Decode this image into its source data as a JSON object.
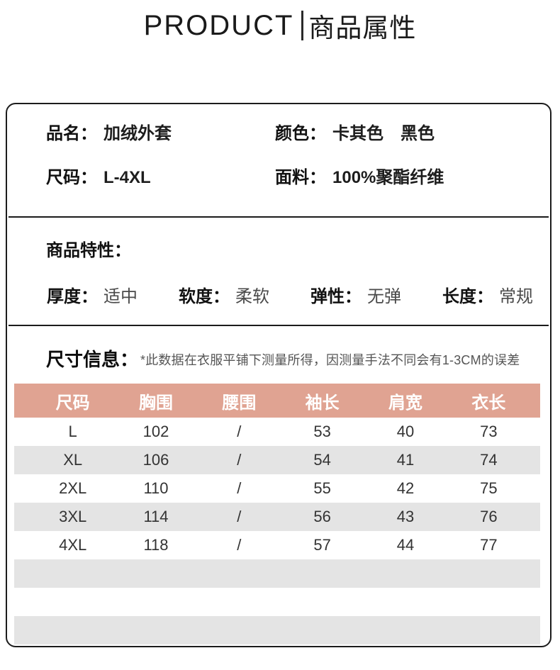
{
  "header": {
    "title_en": "PRODUCT",
    "title_zh": "商品属性"
  },
  "product_info": {
    "fields": [
      {
        "label": "品名：",
        "value": "加绒外套"
      },
      {
        "label": "颜色：",
        "value": "卡其色　黑色"
      },
      {
        "label": "尺码：",
        "value": "L-4XL"
      },
      {
        "label": "面料：",
        "value": "100%聚酯纤维"
      }
    ]
  },
  "features": {
    "heading": "商品特性：",
    "items": [
      {
        "label": "厚度：",
        "value": "适中"
      },
      {
        "label": "软度：",
        "value": "柔软"
      },
      {
        "label": "弹性：",
        "value": "无弹"
      },
      {
        "label": "长度：",
        "value": "常规"
      }
    ]
  },
  "size_info": {
    "heading": "尺寸信息：",
    "note": "*此数据在衣服平铺下测量所得，因测量手法不同会有1-3CM的误差"
  },
  "size_table": {
    "headers": [
      "尺码",
      "胸围",
      "腰围",
      "袖长",
      "肩宽",
      "衣长"
    ],
    "rows": [
      [
        "L",
        "102",
        "/",
        "53",
        "40",
        "73"
      ],
      [
        "XL",
        "106",
        "/",
        "54",
        "41",
        "74"
      ],
      [
        "2XL",
        "110",
        "/",
        "55",
        "42",
        "75"
      ],
      [
        "3XL",
        "114",
        "/",
        "56",
        "43",
        "76"
      ],
      [
        "4XL",
        "118",
        "/",
        "57",
        "44",
        "77"
      ]
    ],
    "empty_rows": 3,
    "colors": {
      "header_bg": "#e0a392",
      "header_text": "#ffffff",
      "stripe_bg": "#e4e4e4"
    }
  }
}
